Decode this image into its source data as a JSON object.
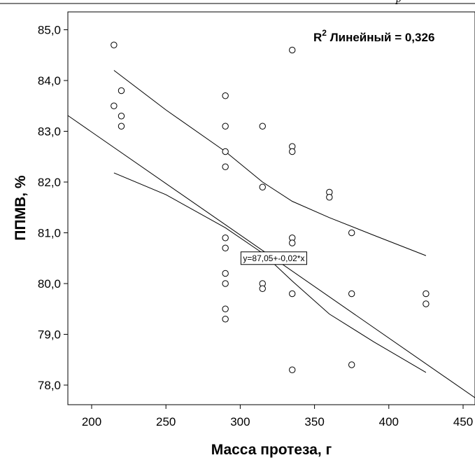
{
  "header": {
    "page_mark": "р"
  },
  "chart_data": {
    "type": "scatter",
    "xlabel": "Масса протеза, г",
    "ylabel": "ППМВ, %",
    "xlim": [
      187,
      465
    ],
    "ylim": [
      77.6,
      85.5
    ],
    "x_ticks": [
      {
        "value": 200,
        "label": "200"
      },
      {
        "value": 250,
        "label": "250"
      },
      {
        "value": 300,
        "label": "300"
      },
      {
        "value": 350,
        "label": "350"
      },
      {
        "value": 400,
        "label": "400"
      },
      {
        "value": 450,
        "label": "450"
      }
    ],
    "y_ticks": [
      {
        "value": 78,
        "label": "78,0"
      },
      {
        "value": 79,
        "label": "79,0"
      },
      {
        "value": 80,
        "label": "80,0"
      },
      {
        "value": 81,
        "label": "81,0"
      },
      {
        "value": 82,
        "label": "82,0"
      },
      {
        "value": 83,
        "label": "83,0"
      },
      {
        "value": 84,
        "label": "84,0"
      },
      {
        "value": 85,
        "label": "85,0"
      }
    ],
    "points": [
      {
        "x": 215,
        "y": 84.7
      },
      {
        "x": 215,
        "y": 83.5
      },
      {
        "x": 220,
        "y": 83.8
      },
      {
        "x": 220,
        "y": 83.3
      },
      {
        "x": 220,
        "y": 83.1
      },
      {
        "x": 290,
        "y": 83.7
      },
      {
        "x": 290,
        "y": 83.1
      },
      {
        "x": 290,
        "y": 82.6
      },
      {
        "x": 290,
        "y": 82.3
      },
      {
        "x": 290,
        "y": 80.9
      },
      {
        "x": 290,
        "y": 80.7
      },
      {
        "x": 290,
        "y": 80.2
      },
      {
        "x": 290,
        "y": 80.0
      },
      {
        "x": 290,
        "y": 79.5
      },
      {
        "x": 290,
        "y": 79.3
      },
      {
        "x": 315,
        "y": 83.1
      },
      {
        "x": 315,
        "y": 81.9
      },
      {
        "x": 315,
        "y": 80.0
      },
      {
        "x": 315,
        "y": 79.9
      },
      {
        "x": 335,
        "y": 84.6
      },
      {
        "x": 335,
        "y": 82.7
      },
      {
        "x": 335,
        "y": 82.6
      },
      {
        "x": 335,
        "y": 80.9
      },
      {
        "x": 335,
        "y": 80.8
      },
      {
        "x": 335,
        "y": 79.8
      },
      {
        "x": 335,
        "y": 78.3
      },
      {
        "x": 360,
        "y": 81.8
      },
      {
        "x": 360,
        "y": 81.7
      },
      {
        "x": 375,
        "y": 81.0
      },
      {
        "x": 375,
        "y": 79.8
      },
      {
        "x": 375,
        "y": 78.4
      },
      {
        "x": 425,
        "y": 79.8
      },
      {
        "x": 425,
        "y": 79.6
      }
    ],
    "fit_line": {
      "intercept": 87.05,
      "slope": -0.02,
      "equation_label": "y=87,05+-0,02*x",
      "label_anchor": {
        "x": 300,
        "y": 80.5
      }
    },
    "ci_upper": [
      {
        "x": 215,
        "y": 84.2
      },
      {
        "x": 250,
        "y": 83.42
      },
      {
        "x": 290,
        "y": 82.6
      },
      {
        "x": 315,
        "y": 82.0
      },
      {
        "x": 335,
        "y": 81.62
      },
      {
        "x": 360,
        "y": 81.3
      },
      {
        "x": 390,
        "y": 80.95
      },
      {
        "x": 425,
        "y": 80.55
      }
    ],
    "ci_lower": [
      {
        "x": 215,
        "y": 82.18
      },
      {
        "x": 250,
        "y": 81.75
      },
      {
        "x": 290,
        "y": 81.1
      },
      {
        "x": 315,
        "y": 80.6
      },
      {
        "x": 335,
        "y": 80.05
      },
      {
        "x": 360,
        "y": 79.4
      },
      {
        "x": 390,
        "y": 78.85
      },
      {
        "x": 425,
        "y": 78.25
      }
    ],
    "r2_label": "R",
    "r2_superscript": "2",
    "r2_text": " Линейный = 0,326",
    "legend_position": "top-right",
    "grid": false
  }
}
